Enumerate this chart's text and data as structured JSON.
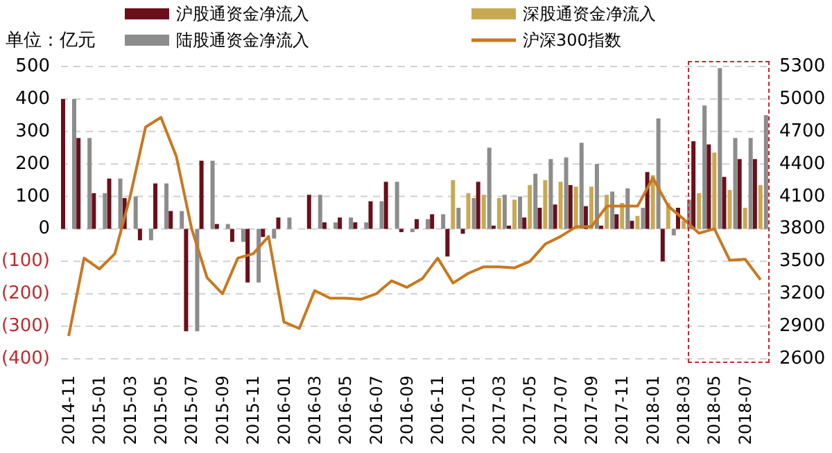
{
  "chart_data": {
    "type": "bar",
    "ylabel": "单位：亿元",
    "categories": [
      "2014-11",
      null,
      "2015-01",
      null,
      "2015-03",
      null,
      "2015-05",
      null,
      "2015-07",
      null,
      "2015-09",
      null,
      "2015-11",
      null,
      "2016-01",
      null,
      "2016-03",
      null,
      "2016-05",
      null,
      "2016-07",
      null,
      "2016-09",
      null,
      "2016-11",
      null,
      "2017-01",
      null,
      "2017-03",
      null,
      "2017-05",
      null,
      "2017-07",
      null,
      "2017-09",
      null,
      "2017-11",
      null,
      "2018-01",
      null,
      "2018-03",
      null,
      "2018-05",
      null,
      "2018-07",
      null
    ],
    "series": [
      {
        "name": "沪股通资金净流入",
        "color": "#6b0f1a",
        "values": [
          400,
          280,
          110,
          155,
          95,
          -35,
          140,
          55,
          -315,
          210,
          15,
          -40,
          -165,
          -25,
          35,
          null,
          105,
          20,
          35,
          20,
          85,
          145,
          -10,
          30,
          45,
          -85,
          -15,
          145,
          10,
          10,
          35,
          65,
          75,
          135,
          70,
          10,
          45,
          25,
          175,
          -100,
          65,
          270,
          260,
          160,
          215,
          215
        ]
      },
      {
        "name": "深股通资金净流入",
        "color": "#c8a951",
        "values": [
          null,
          null,
          null,
          null,
          null,
          null,
          null,
          null,
          null,
          null,
          null,
          null,
          null,
          null,
          null,
          null,
          null,
          null,
          null,
          null,
          null,
          null,
          null,
          null,
          null,
          150,
          110,
          105,
          95,
          90,
          135,
          150,
          145,
          130,
          130,
          105,
          80,
          40,
          165,
          80,
          25,
          110,
          235,
          120,
          65,
          135
        ]
      },
      {
        "name": "陆股通资金净流入",
        "color": "#8c8c8c",
        "values": [
          400,
          280,
          110,
          155,
          100,
          -35,
          140,
          55,
          -315,
          210,
          15,
          -40,
          -165,
          -30,
          35,
          null,
          105,
          20,
          35,
          20,
          85,
          145,
          -10,
          30,
          45,
          65,
          95,
          250,
          105,
          100,
          170,
          215,
          220,
          265,
          200,
          115,
          125,
          65,
          340,
          -20,
          90,
          380,
          495,
          280,
          280,
          350
        ]
      },
      {
        "name": "沪深300指数",
        "type": "line",
        "axis": "y2",
        "color": "#c8781e",
        "values": [
          2810,
          3530,
          3430,
          3570,
          4100,
          4740,
          4830,
          4470,
          3800,
          3350,
          3200,
          3530,
          3570,
          3730,
          2940,
          2880,
          3230,
          3160,
          3160,
          3150,
          3200,
          3320,
          3260,
          3340,
          3530,
          3300,
          3390,
          3450,
          3450,
          3440,
          3500,
          3660,
          3730,
          3820,
          3820,
          4010,
          4010,
          4010,
          4270,
          4010,
          3890,
          3760,
          3800,
          3510,
          3520,
          3330
        ]
      }
    ],
    "ylim": [
      -400,
      500
    ],
    "yticks": [
      {
        "value": -400,
        "label": "(400)"
      },
      {
        "value": -300,
        "label": "(300)"
      },
      {
        "value": -200,
        "label": "(200)"
      },
      {
        "value": -100,
        "label": "(100)"
      },
      0,
      100,
      200,
      300,
      400,
      500
    ],
    "y2lim": [
      2600,
      5300
    ],
    "y2ticks": [
      2600,
      2900,
      3200,
      3500,
      3800,
      4100,
      4400,
      4700,
      5000,
      5300
    ],
    "grid": "y",
    "legend": "top",
    "marker": "none",
    "line_style": "solid"
  }
}
